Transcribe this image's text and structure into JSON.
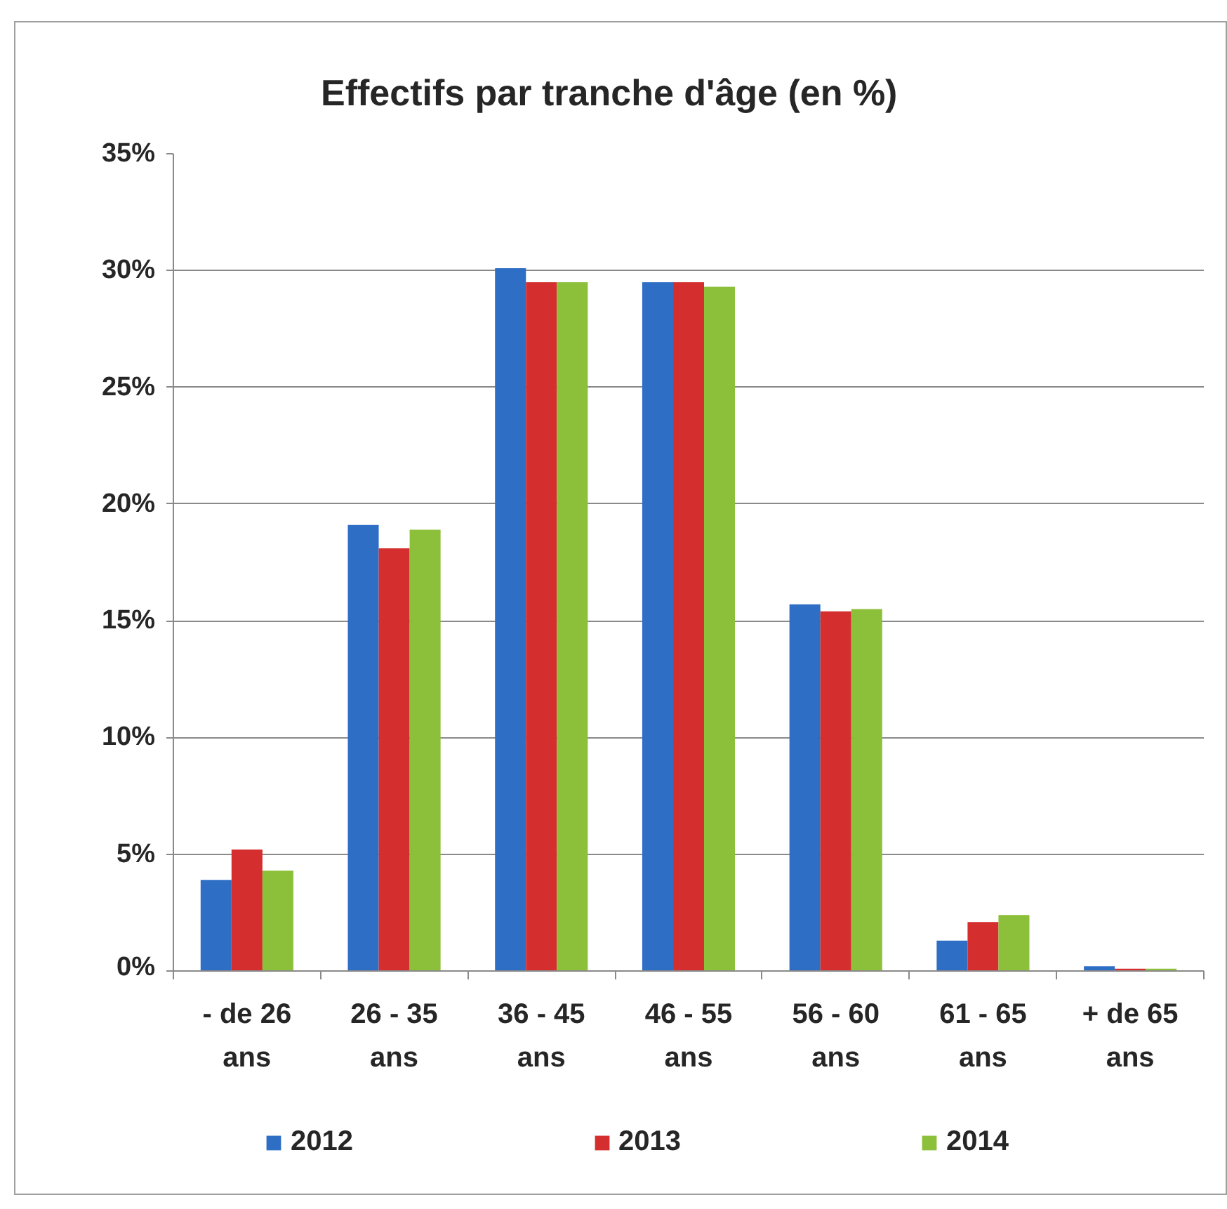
{
  "chart_data": {
    "type": "bar",
    "title": "Effectifs par tranche d'âge (en %)",
    "categories": [
      "- de 26 ans",
      "26 - 35 ans",
      "36 - 45 ans",
      "46 - 55 ans",
      "56 - 60 ans",
      "61 - 65 ans",
      "+ de 65 ans"
    ],
    "series": [
      {
        "name": "2012",
        "color": "#2e6ec5",
        "values": [
          3.9,
          19.1,
          30.1,
          29.5,
          15.7,
          1.3,
          0.2
        ]
      },
      {
        "name": "2013",
        "color": "#d42e2e",
        "values": [
          5.2,
          18.1,
          29.5,
          29.5,
          15.4,
          2.1,
          0.1
        ]
      },
      {
        "name": "2014",
        "color": "#8cc03a",
        "values": [
          4.3,
          18.9,
          29.5,
          29.3,
          15.5,
          2.4,
          0.1
        ]
      }
    ],
    "ylim": [
      0,
      35
    ],
    "yticks": [
      {
        "value": 0,
        "label": "0%"
      },
      {
        "value": 5,
        "label": "5%"
      },
      {
        "value": 10,
        "label": "10%"
      },
      {
        "value": 15,
        "label": "15%"
      },
      {
        "value": 20,
        "label": "20%"
      },
      {
        "value": 25,
        "label": "25%"
      },
      {
        "value": 30,
        "label": "30%"
      },
      {
        "value": 35,
        "label": "35%"
      }
    ],
    "grid": "y",
    "legend": "bottom"
  }
}
